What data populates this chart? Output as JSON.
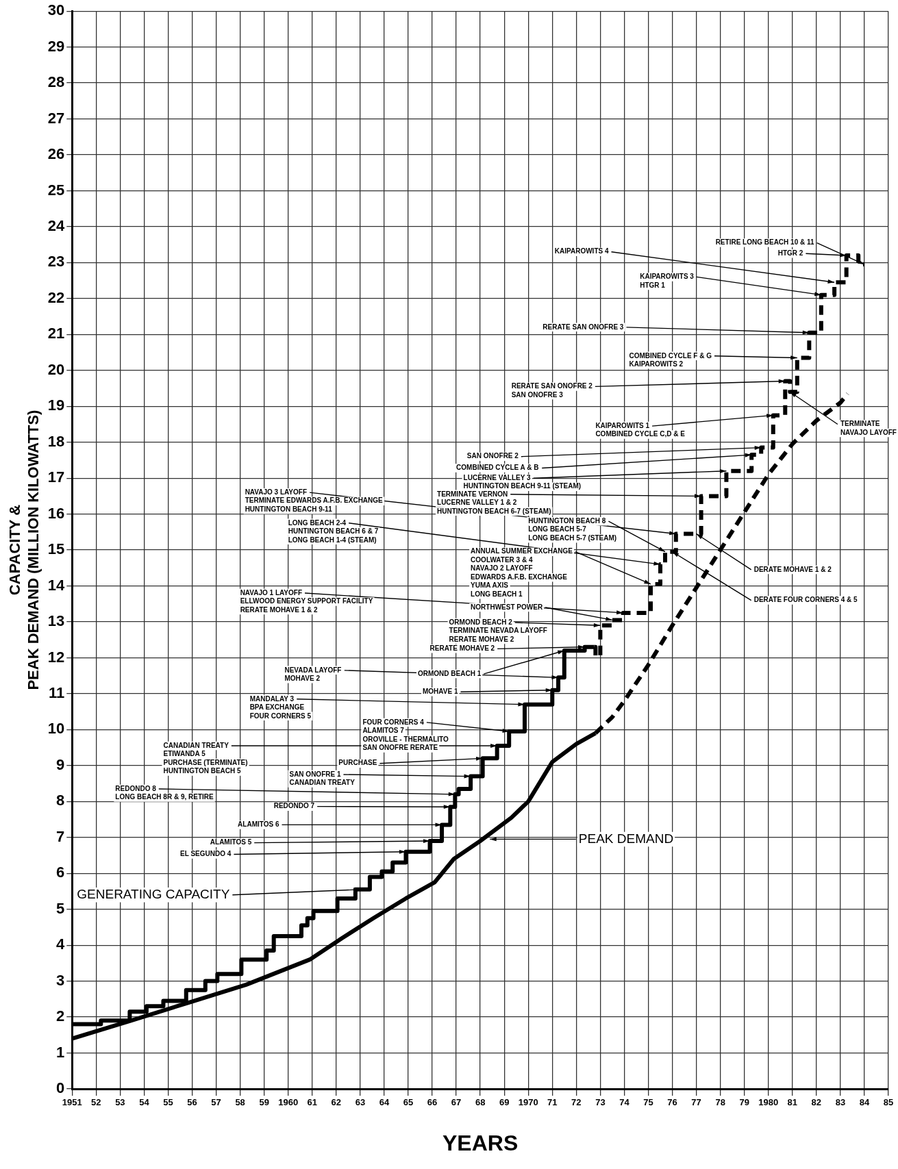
{
  "chart_data": {
    "type": "line",
    "xlabel": "YEARS",
    "ylabel": "CAPACITY &\nPEAK DEMAND (MILLION KILOWATTS)",
    "xlim": [
      1951,
      1985
    ],
    "ylim": [
      0,
      30
    ],
    "xticks": [
      {
        "value": 1951,
        "label": "1951"
      },
      {
        "value": 1952,
        "label": "52"
      },
      {
        "value": 1953,
        "label": "53"
      },
      {
        "value": 1954,
        "label": "54"
      },
      {
        "value": 1955,
        "label": "55"
      },
      {
        "value": 1956,
        "label": "56"
      },
      {
        "value": 1957,
        "label": "57"
      },
      {
        "value": 1958,
        "label": "58"
      },
      {
        "value": 1959,
        "label": "59"
      },
      {
        "value": 1960,
        "label": "1960"
      },
      {
        "value": 1961,
        "label": "61"
      },
      {
        "value": 1962,
        "label": "62"
      },
      {
        "value": 1963,
        "label": "63"
      },
      {
        "value": 1964,
        "label": "64"
      },
      {
        "value": 1965,
        "label": "65"
      },
      {
        "value": 1966,
        "label": "66"
      },
      {
        "value": 1967,
        "label": "67"
      },
      {
        "value": 1968,
        "label": "68"
      },
      {
        "value": 1969,
        "label": "69"
      },
      {
        "value": 1970,
        "label": "1970"
      },
      {
        "value": 1971,
        "label": "71"
      },
      {
        "value": 1972,
        "label": "72"
      },
      {
        "value": 1973,
        "label": "73"
      },
      {
        "value": 1974,
        "label": "74"
      },
      {
        "value": 1975,
        "label": "75"
      },
      {
        "value": 1976,
        "label": "76"
      },
      {
        "value": 1977,
        "label": "77"
      },
      {
        "value": 1978,
        "label": "78"
      },
      {
        "value": 1979,
        "label": "79"
      },
      {
        "value": 1980,
        "label": "1980"
      },
      {
        "value": 1981,
        "label": "81"
      },
      {
        "value": 1982,
        "label": "82"
      },
      {
        "value": 1983,
        "label": "83"
      },
      {
        "value": 1984,
        "label": "84"
      },
      {
        "value": 1985,
        "label": "85"
      }
    ],
    "yticks": [
      0,
      1,
      2,
      3,
      4,
      5,
      6,
      7,
      8,
      9,
      10,
      11,
      12,
      13,
      14,
      15,
      16,
      17,
      18,
      19,
      20,
      21,
      22,
      23,
      24,
      25,
      26,
      27,
      28,
      29,
      30
    ],
    "grid": true,
    "legend": false,
    "series": [
      {
        "type": "step",
        "color": "#000000",
        "line_style": "solid",
        "x": [
          1951,
          1952.2,
          1953.4,
          1954.1,
          1954.8,
          1955.75,
          1956.55,
          1957.05,
          1958.05,
          1959.1,
          1959.4,
          1960.55,
          1960.8,
          1961.05,
          1962.05,
          1962.8,
          1963.4,
          1963.9,
          1964.35,
          1964.9,
          1965.9,
          1966.4,
          1966.75,
          1966.95,
          1967.1,
          1967.6,
          1968.1,
          1968.7,
          1969.2,
          1969.85,
          1971.0,
          1971.25,
          1971.5,
          1972.35,
          1972.75
        ],
        "values": [
          1.8,
          1.9,
          2.15,
          2.3,
          2.45,
          2.75,
          3.0,
          3.2,
          3.6,
          3.85,
          4.25,
          4.55,
          4.75,
          4.95,
          5.3,
          5.55,
          5.9,
          6.05,
          6.3,
          6.6,
          6.9,
          7.35,
          7.85,
          8.2,
          8.35,
          8.7,
          9.2,
          9.55,
          9.95,
          10.7,
          11.1,
          11.45,
          12.2,
          12.3,
          12.3
        ]
      },
      {
        "type": "step",
        "color": "#000000",
        "line_style": "dashed",
        "x": [
          1972.75,
          1972.8,
          1973.0,
          1973.5,
          1973.95,
          1975.1,
          1975.5,
          1975.7,
          1976.15,
          1977.2,
          1978.25,
          1979.3,
          1979.7,
          1980.2,
          1980.7,
          1980.9,
          1981.2,
          1981.7,
          1982.2,
          1982.75,
          1983.25,
          1983.75,
          1984.0
        ],
        "values": [
          12.3,
          12.05,
          12.9,
          13.05,
          13.25,
          14.05,
          14.6,
          14.95,
          15.45,
          16.5,
          17.2,
          17.65,
          17.85,
          18.75,
          19.7,
          19.4,
          20.35,
          21.05,
          22.1,
          22.45,
          23.2,
          22.95,
          22.95
        ]
      },
      {
        "type": "line",
        "color": "#000000",
        "line_style": "solid",
        "x": [
          1951,
          1953.45,
          1955.85,
          1958.25,
          1960.9,
          1962.25,
          1963.55,
          1964.9,
          1966.1,
          1966.9,
          1968.0,
          1969.3,
          1970,
          1971,
          1972,
          1972.8
        ],
        "values": [
          1.4,
          1.9,
          2.4,
          2.9,
          3.6,
          4.2,
          4.75,
          5.3,
          5.75,
          6.4,
          6.9,
          7.55,
          8.0,
          9.1,
          9.6,
          9.9
        ]
      },
      {
        "type": "line",
        "color": "#000000",
        "line_style": "dashed",
        "x": [
          1972.8,
          1973.5,
          1974,
          1975,
          1976,
          1977,
          1978,
          1979,
          1980,
          1981,
          1982,
          1983,
          1983.3
        ],
        "values": [
          9.9,
          10.35,
          10.8,
          11.8,
          12.9,
          13.95,
          15.0,
          16.05,
          17.1,
          17.95,
          18.6,
          19.1,
          19.35
        ]
      }
    ],
    "annotations": [
      {
        "text": "RETIRE LONG BEACH 10 & 11",
        "x": 1984.0,
        "y": 22.95
      },
      {
        "text": "HTGR 2",
        "x": 1983.25,
        "y": 23.2
      },
      {
        "text": "KAIPAROWITS 4",
        "x": 1982.75,
        "y": 22.45
      },
      {
        "text": "KAIPAROWITS 3\nHTGR 1",
        "x": 1982.2,
        "y": 22.1
      },
      {
        "text": "RERATE SAN ONOFRE 3",
        "x": 1981.7,
        "y": 21.05
      },
      {
        "text": "COMBINED CYCLE F & G\nKAIPAROWITS 2",
        "x": 1981.2,
        "y": 20.35
      },
      {
        "text": "RERATE SAN ONOFRE 2\nSAN ONOFRE 3",
        "x": 1980.7,
        "y": 19.7
      },
      {
        "text": "KAIPAROWITS 1\nCOMBINED CYCLE C,D & E",
        "x": 1980.2,
        "y": 18.75
      },
      {
        "text": "TERMINATE\nNAVAJO LAYOFF",
        "x": 1980.9,
        "y": 19.4
      },
      {
        "text": "SAN ONOFRE 2",
        "x": 1979.7,
        "y": 17.85
      },
      {
        "text": "COMBINED CYCLE A & B",
        "x": 1979.3,
        "y": 17.65
      },
      {
        "text": "LUCERNE VALLEY 3\nHUNTINGTON BEACH 9-11 (STEAM)",
        "x": 1978.25,
        "y": 17.2
      },
      {
        "text": "NAVAJO 3 LAYOFF\nTERMINATE EDWARDS A.F.B. EXCHANGE\nHUNTINGTON BEACH 9-11",
        "x": 1976.15,
        "y": 15.45
      },
      {
        "text": "TERMINATE VERNON\nLUCERNE VALLEY 1 & 2\nHUNTINGTON BEACH 6-7 (STEAM)",
        "x": 1977.2,
        "y": 16.5
      },
      {
        "text": "LONG BEACH 2-4\nHUNTINGTON BEACH 6 & 7\nLONG BEACH 1-4 (STEAM)",
        "x": 1975.5,
        "y": 14.6
      },
      {
        "text": "HUNTINGTON BEACH 8\nLONG BEACH 5-7\nLONG BEACH 5-7 (STEAM)",
        "x": 1975.7,
        "y": 14.95
      },
      {
        "text": "ANNUAL SUMMER EXCHANGE\nCOOLWATER 3 & 4\nNAVAJO 2 LAYOFF\nEDWARDS A.F.B. EXCHANGE\nYUMA AXIS\nLONG BEACH 1",
        "x": 1975.1,
        "y": 14.05
      },
      {
        "text": "NAVAJO 1 LAYOFF\nELLWOOD ENERGY SUPPORT FACILITY\nRERATE MOHAVE 1 & 2",
        "x": 1973.95,
        "y": 13.25
      },
      {
        "text": "NORTHWEST POWER",
        "x": 1973.5,
        "y": 13.05
      },
      {
        "text": "ORMOND BEACH 2\nTERMINATE NEVADA LAYOFF\nRERATE MOHAVE 2",
        "x": 1973.0,
        "y": 12.9
      },
      {
        "text": "RERATE MOHAVE 2",
        "x": 1972.35,
        "y": 12.3
      },
      {
        "text": "ORMOND BEACH 1",
        "x": 1971.5,
        "y": 12.2
      },
      {
        "text": "NEVADA LAYOFF\nMOHAVE 2",
        "x": 1971.25,
        "y": 11.45
      },
      {
        "text": "MOHAVE 1",
        "x": 1971.0,
        "y": 11.1
      },
      {
        "text": "MANDALAY 3\nBPA EXCHANGE\nFOUR CORNERS 5",
        "x": 1969.85,
        "y": 10.7
      },
      {
        "text": "FOUR CORNERS 4\nALAMITOS 7\nOROVILLE - THERMALITO\nSAN ONOFRE RERATE",
        "x": 1969.2,
        "y": 9.95
      },
      {
        "text": "CANADIAN TREATY\nETIWANDA 5\nPURCHASE (TERMINATE)\nHUNTINGTON BEACH 5",
        "x": 1968.7,
        "y": 9.55
      },
      {
        "text": "PURCHASE",
        "x": 1968.1,
        "y": 9.2
      },
      {
        "text": "SAN ONOFRE 1\nCANADIAN TREATY",
        "x": 1967.6,
        "y": 8.7
      },
      {
        "text": "REDONDO 8\nLONG BEACH 8R & 9, RETIRE",
        "x": 1966.95,
        "y": 8.2
      },
      {
        "text": "REDONDO 7",
        "x": 1966.75,
        "y": 7.85
      },
      {
        "text": "ALAMITOS 6",
        "x": 1966.4,
        "y": 7.35
      },
      {
        "text": "ALAMITOS 5",
        "x": 1965.9,
        "y": 6.9
      },
      {
        "text": "EL SEGUNDO 4",
        "x": 1964.9,
        "y": 6.6
      },
      {
        "text": "GENERATING CAPACITY",
        "x": 1963.0,
        "y": 5.55
      },
      {
        "text": "PEAK DEMAND",
        "x": 1968.4,
        "y": 6.95
      },
      {
        "text": "DERATE MOHAVE 1 & 2",
        "x": 1977.0,
        "y": 15.45
      },
      {
        "text": "DERATE FOUR CORNERS 4 & 5",
        "x": 1976.0,
        "y": 14.95
      }
    ]
  }
}
